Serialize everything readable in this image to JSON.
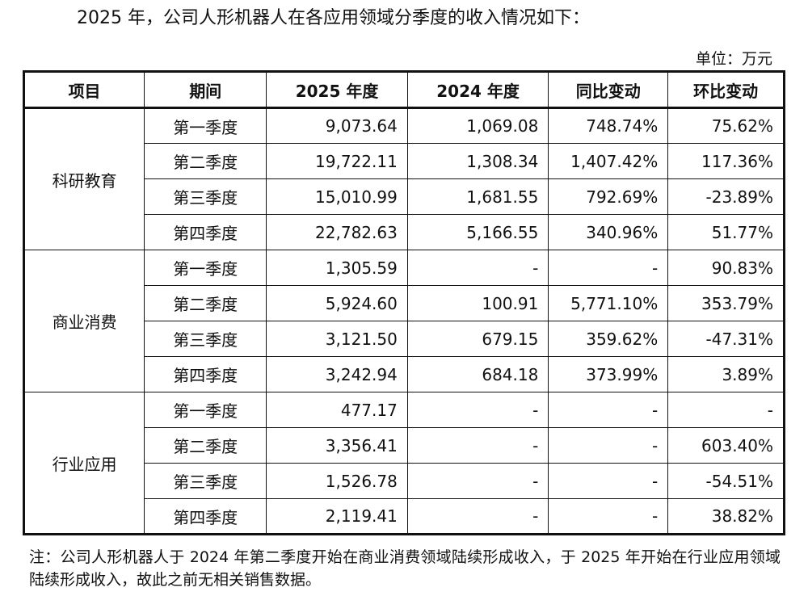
{
  "title": "2025 年，公司人形机器人在各应用领域分季度的收入情况如下：",
  "unit": "单位：万元",
  "table": {
    "header": [
      "项目",
      "期间",
      "2025 年度",
      "2024 年度",
      "同比变动",
      "环比变动"
    ],
    "groups": [
      {
        "name": "科研教育",
        "rows": [
          [
            "第一季度",
            "9,073.64",
            "1,069.08",
            "748.74%",
            "75.62%"
          ],
          [
            "第二季度",
            "19,722.11",
            "1,308.34",
            "1,407.42%",
            "117.36%"
          ],
          [
            "第三季度",
            "15,010.99",
            "1,681.55",
            "792.69%",
            "-23.89%"
          ],
          [
            "第四季度",
            "22,782.63",
            "5,166.55",
            "340.96%",
            "51.77%"
          ]
        ]
      },
      {
        "name": "商业消费",
        "rows": [
          [
            "第一季度",
            "1,305.59",
            "-",
            "-",
            "90.83%"
          ],
          [
            "第二季度",
            "5,924.60",
            "100.91",
            "5,771.10%",
            "353.79%"
          ],
          [
            "第三季度",
            "3,121.50",
            "679.15",
            "359.62%",
            "-47.31%"
          ],
          [
            "第四季度",
            "3,242.94",
            "684.18",
            "373.99%",
            "3.89%"
          ]
        ]
      },
      {
        "name": "行业应用",
        "rows": [
          [
            "第一季度",
            "477.17",
            "-",
            "-",
            "-"
          ],
          [
            "第二季度",
            "3,356.41",
            "-",
            "-",
            "603.40%"
          ],
          [
            "第三季度",
            "1,526.78",
            "-",
            "-",
            "-54.51%"
          ],
          [
            "第四季度",
            "2,119.41",
            "-",
            "-",
            "38.82%"
          ]
        ]
      }
    ]
  },
  "note": "注：公司人形机器人于 2024 年第二季度开始在商业消费领域陆续形成收入，于 2025 年开始在行业应用领域陆续形成收入，故此之前无相关销售数据。"
}
